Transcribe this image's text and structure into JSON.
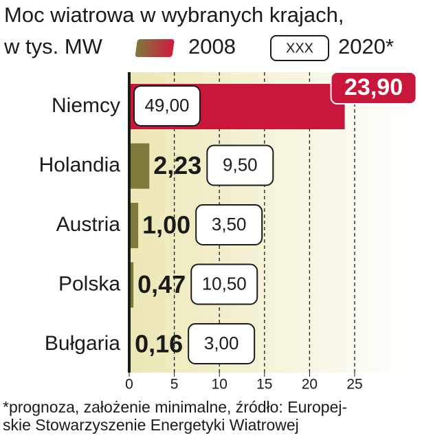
{
  "chart_data": {
    "type": "bar",
    "title": "Moc wiatrowa w wybranych krajach,",
    "subtitle": "w tys. MW",
    "categories": [
      "Niemcy",
      "Holandia",
      "Austria",
      "Polska",
      "Bułgaria"
    ],
    "series": [
      {
        "name": "2008",
        "colors": [
          "#c8173a",
          "#7d7a3c",
          "#7d7a3c",
          "#7d7a3c",
          "#7d7a3c"
        ],
        "values": [
          23.9,
          2.23,
          1.0,
          0.47,
          0.16
        ],
        "value_labels": [
          "23,90",
          "2,23",
          "1,00",
          "0,47",
          "0,16"
        ]
      },
      {
        "name": "2020*",
        "legend_sample": "XXX",
        "values": [
          49.0,
          9.5,
          3.5,
          10.5,
          3.0
        ],
        "value_labels": [
          "49,00",
          "9,50",
          "3,50",
          "10,50",
          "3,00"
        ]
      }
    ],
    "xlim": [
      0,
      30
    ],
    "xticks": [
      0,
      5,
      10,
      15,
      20,
      25
    ],
    "grid": true,
    "note_lines": [
      "*prognoza, założenie minimalne, źródło: Europej-",
      "skie Stowarzyszenie Energetyki Wiatrowej"
    ]
  }
}
